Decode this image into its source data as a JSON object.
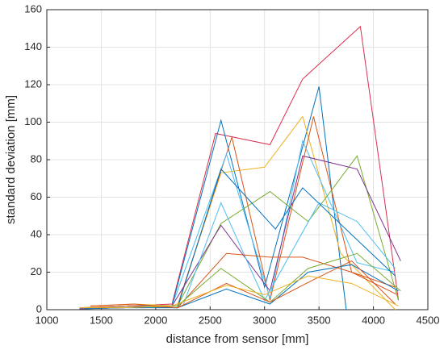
{
  "chart_data": {
    "type": "line",
    "xlabel": "distance from sensor [mm]",
    "ylabel": "standard deviation [mm]",
    "xlim": [
      1000,
      4500
    ],
    "xticks": [
      1000,
      1500,
      2000,
      2500,
      3000,
      3500,
      4000,
      4500
    ],
    "ylim": [
      0,
      160
    ],
    "yticks": [
      0,
      20,
      40,
      60,
      80,
      100,
      120,
      140,
      160
    ],
    "grid": true,
    "series": [
      {
        "color": "#d9304f",
        "x": [
          1350,
          1750,
          2150,
          2550,
          3050,
          3350,
          3880,
          4230
        ],
        "values": [
          1,
          2,
          3,
          94,
          88,
          123,
          151,
          5
        ]
      },
      {
        "color": "#0072bd",
        "x": [
          1300,
          1700,
          2150,
          2600,
          3000,
          3500,
          3750
        ],
        "values": [
          0.5,
          1,
          2,
          101,
          12,
          119,
          0
        ]
      },
      {
        "color": "#edb120",
        "x": [
          1400,
          1800,
          2200,
          2600,
          3000,
          3350,
          3700,
          4200
        ],
        "values": [
          2,
          3,
          2,
          73,
          76,
          103,
          30,
          0
        ]
      },
      {
        "color": "#d95319",
        "x": [
          1350,
          1750,
          2200,
          2700,
          3050,
          3450,
          3800,
          4220
        ],
        "values": [
          1,
          2,
          2,
          92,
          5,
          103,
          20,
          8
        ]
      },
      {
        "color": "#4dbeee",
        "x": [
          1300,
          1700,
          2150,
          2650,
          3050,
          3350,
          3850,
          4200
        ],
        "values": [
          1,
          1,
          2,
          83,
          6,
          90,
          25,
          20
        ]
      },
      {
        "color": "#77ac30",
        "x": [
          1400,
          1750,
          2200,
          2600,
          3050,
          3400,
          3850,
          4230
        ],
        "values": [
          1,
          2,
          2,
          46,
          63,
          47,
          82,
          5
        ]
      },
      {
        "color": "#0072bd",
        "x": [
          1350,
          1750,
          2200,
          2600,
          3100,
          3350,
          3800,
          4200
        ],
        "values": [
          1,
          2,
          1,
          75,
          43,
          65,
          40,
          18
        ]
      },
      {
        "color": "#7e2f8e",
        "x": [
          1300,
          1700,
          2150,
          2600,
          3050,
          3350,
          3850,
          4250
        ],
        "values": [
          0.5,
          1,
          2,
          45,
          10,
          82,
          75,
          26
        ]
      },
      {
        "color": "#4dbeee",
        "x": [
          1350,
          1800,
          2250,
          2600,
          3000,
          3500,
          3850,
          4200
        ],
        "values": [
          1,
          2,
          2,
          57,
          5,
          57,
          47,
          22
        ]
      },
      {
        "color": "#d95319",
        "x": [
          1300,
          1750,
          2200,
          2650,
          3050,
          3350,
          3800,
          4200
        ],
        "values": [
          1,
          2,
          1,
          30,
          28,
          28,
          20,
          12
        ]
      },
      {
        "color": "#77ac30",
        "x": [
          1350,
          1700,
          2200,
          2600,
          3050,
          3400,
          3850,
          4250
        ],
        "values": [
          1,
          1,
          2,
          22,
          4,
          22,
          30,
          10
        ]
      },
      {
        "color": "#0072bd",
        "x": [
          1350,
          1700,
          2200,
          2650,
          3050,
          3400,
          3800,
          4230
        ],
        "values": [
          0.5,
          1,
          1,
          11,
          3,
          20,
          24,
          10
        ]
      },
      {
        "color": "#d95319",
        "x": [
          1400,
          1800,
          2200,
          2650,
          3050,
          3450,
          3800,
          4200
        ],
        "values": [
          2,
          3,
          1,
          14,
          4,
          16,
          26,
          3
        ]
      },
      {
        "color": "#edb120",
        "x": [
          1300,
          1700,
          2150,
          2650,
          3000,
          3400,
          3800,
          4230
        ],
        "values": [
          1,
          1,
          2,
          13,
          8,
          18,
          14,
          2
        ]
      }
    ]
  }
}
